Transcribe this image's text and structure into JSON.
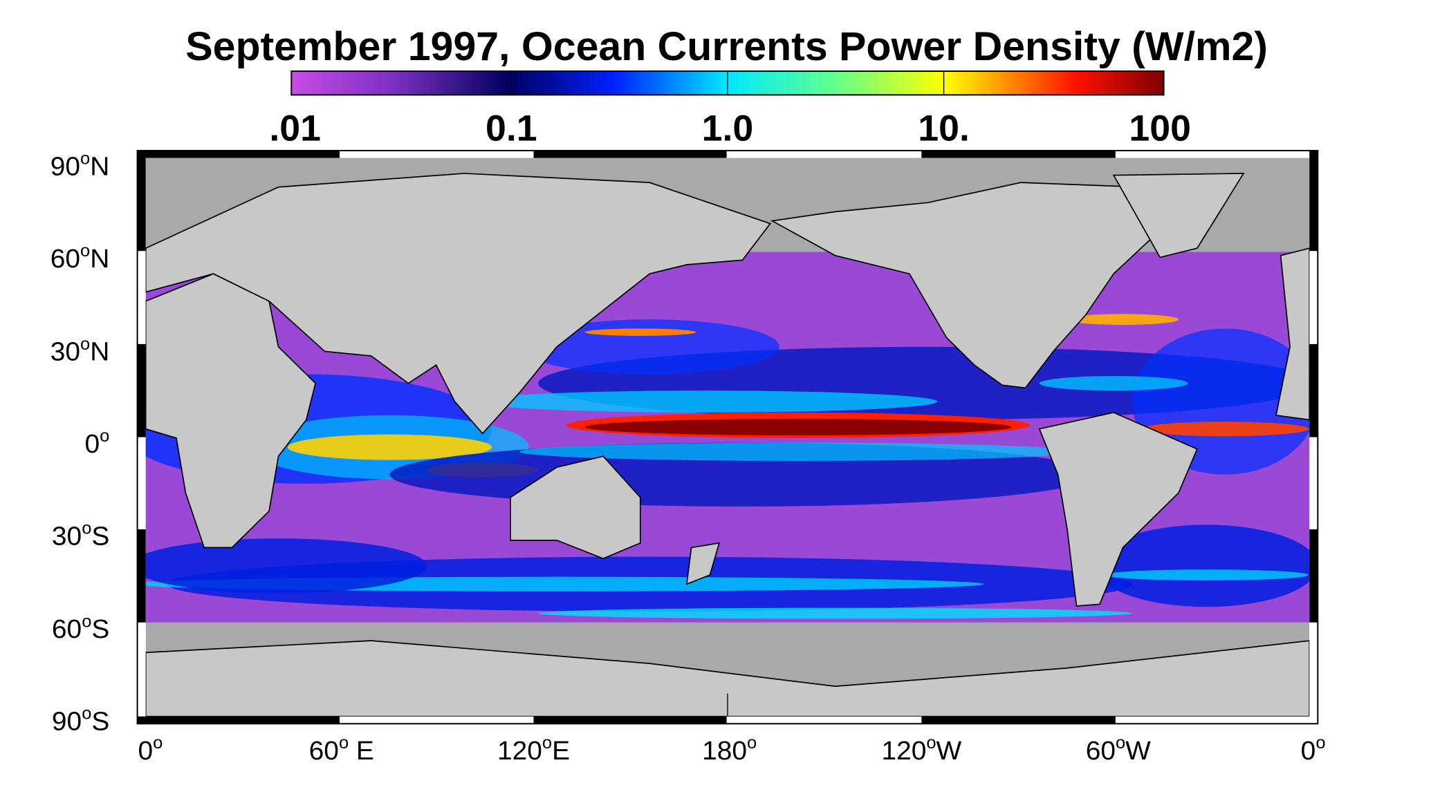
{
  "title": "September 1997, Ocean Currents Power Density  (W/m2)",
  "colorbar": {
    "ticks": [
      ".01",
      "0.1",
      "1.0",
      "10.",
      "100"
    ]
  },
  "lat_labels": [
    {
      "value": "90",
      "unit": "o",
      "hemisphere": "N"
    },
    {
      "value": "60",
      "unit": "o",
      "hemisphere": "N"
    },
    {
      "value": "30",
      "unit": "o",
      "hemisphere": "N"
    },
    {
      "value": "0",
      "unit": "o",
      "hemisphere": ""
    },
    {
      "value": "30",
      "unit": "o",
      "hemisphere": "S"
    },
    {
      "value": "60",
      "unit": "o",
      "hemisphere": "S"
    },
    {
      "value": "90",
      "unit": "o",
      "hemisphere": "S"
    }
  ],
  "lon_labels": [
    {
      "value": "0",
      "unit": "o",
      "hemisphere": ""
    },
    {
      "value": "60",
      "unit": "o",
      "hemisphere": " E"
    },
    {
      "value": "120",
      "unit": "o",
      "hemisphere": "E"
    },
    {
      "value": "180",
      "unit": "o",
      "hemisphere": ""
    },
    {
      "value": "120",
      "unit": "o",
      "hemisphere": "W"
    },
    {
      "value": "60",
      "unit": "o",
      "hemisphere": "W"
    },
    {
      "value": "0",
      "unit": "o",
      "hemisphere": ""
    }
  ]
}
